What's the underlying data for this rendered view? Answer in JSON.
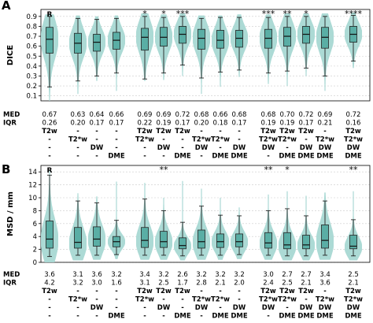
{
  "colors": {
    "violin": "#a8d8d3",
    "box": "#5aaea5",
    "line": "#222222",
    "grid": "#cccccc"
  },
  "table": {
    "row_labels": {
      "med": "MED",
      "iqr": "IQR"
    }
  },
  "chart_data": [
    {
      "panel_label": "A",
      "type": "violin",
      "ylabel": "DICE",
      "ylim": [
        0.05,
        0.97
      ],
      "yticks": [
        0.1,
        0.2,
        0.3,
        0.4,
        0.5,
        0.6,
        0.7,
        0.8,
        0.9
      ],
      "ytick_labels": [
        "0.1",
        "0.2",
        "0.3",
        "0.4",
        "0.5",
        "0.6",
        "0.7",
        "0.8",
        "0.9"
      ],
      "grid": true,
      "groups": [
        1,
        1,
        1,
        1,
        2,
        2,
        2,
        2,
        2,
        2,
        3,
        3,
        3,
        3,
        4
      ],
      "reference_marker": "R",
      "reference_index": 0,
      "significance": [
        "",
        "",
        "",
        "",
        "*",
        "*",
        "***",
        "",
        "",
        "",
        "***",
        "**",
        "*",
        "",
        "****"
      ],
      "med": [
        "0.67",
        "0.63",
        "0.64",
        "0.66",
        "0.69",
        "0.69",
        "0.72",
        "0.68",
        "0.66",
        "0.68",
        "0.68",
        "0.70",
        "0.72",
        "0.69",
        "0.72"
      ],
      "iqr": [
        "0.26",
        "0.20",
        "0.17",
        "0.17",
        "0.22",
        "0.19",
        "0.17",
        "0.20",
        "0.18",
        "0.17",
        "0.19",
        "0.19",
        "0.17",
        "0.21",
        "0.16"
      ],
      "sequence_rows": [
        [
          "T2w",
          "-",
          "-",
          "-",
          "T2w",
          "T2w",
          "T2w",
          "-",
          "-",
          "-",
          "T2w",
          "T2w",
          "T2w",
          "-",
          "T2w"
        ],
        [
          "-",
          "T2*w",
          "-",
          "-",
          "T2*w",
          "-",
          "-",
          "T2*w",
          "T2*w",
          "-",
          "T2*w",
          "T2*w",
          "-",
          "T2*w",
          "T2*w"
        ],
        [
          "-",
          "-",
          "DW",
          "-",
          "-",
          "DW",
          "-",
          "DW",
          "-",
          "DW",
          "DW",
          "-",
          "DW",
          "DW",
          "DW"
        ],
        [
          "-",
          "-",
          "-",
          "DME",
          "-",
          "-",
          "DME",
          "-",
          "DME",
          "DME",
          "-",
          "DME",
          "DME",
          "DME",
          "DME"
        ]
      ],
      "boxes": [
        {
          "median": 0.67,
          "q1": 0.53,
          "q3": 0.79,
          "whisker_low": 0.19,
          "whisker_high": 0.9,
          "kde_low": 0.05,
          "kde_high": 0.92
        },
        {
          "median": 0.63,
          "q1": 0.53,
          "q3": 0.73,
          "whisker_low": 0.25,
          "whisker_high": 0.88,
          "kde_low": 0.12,
          "kde_high": 0.91
        },
        {
          "median": 0.64,
          "q1": 0.55,
          "q3": 0.72,
          "whisker_low": 0.3,
          "whisker_high": 0.87,
          "kde_low": 0.25,
          "kde_high": 0.9
        },
        {
          "median": 0.66,
          "q1": 0.57,
          "q3": 0.74,
          "whisker_low": 0.33,
          "whisker_high": 0.88,
          "kde_low": 0.15,
          "kde_high": 0.91
        },
        {
          "median": 0.69,
          "q1": 0.56,
          "q3": 0.78,
          "whisker_low": 0.27,
          "whisker_high": 0.9,
          "kde_low": 0.25,
          "kde_high": 0.93
        },
        {
          "median": 0.69,
          "q1": 0.6,
          "q3": 0.79,
          "whisker_low": 0.33,
          "whisker_high": 0.89,
          "kde_low": 0.26,
          "kde_high": 0.92
        },
        {
          "median": 0.72,
          "q1": 0.63,
          "q3": 0.8,
          "whisker_low": 0.41,
          "whisker_high": 0.9,
          "kde_low": 0.3,
          "kde_high": 0.93
        },
        {
          "median": 0.68,
          "q1": 0.57,
          "q3": 0.77,
          "whisker_low": 0.28,
          "whisker_high": 0.88,
          "kde_low": 0.12,
          "kde_high": 0.91
        },
        {
          "median": 0.66,
          "q1": 0.58,
          "q3": 0.76,
          "whisker_low": 0.34,
          "whisker_high": 0.89,
          "kde_low": 0.19,
          "kde_high": 0.91
        },
        {
          "median": 0.68,
          "q1": 0.59,
          "q3": 0.76,
          "whisker_low": 0.36,
          "whisker_high": 0.89,
          "kde_low": 0.29,
          "kde_high": 0.92
        },
        {
          "median": 0.68,
          "q1": 0.58,
          "q3": 0.77,
          "whisker_low": 0.33,
          "whisker_high": 0.89,
          "kde_low": 0.22,
          "kde_high": 0.92
        },
        {
          "median": 0.7,
          "q1": 0.6,
          "q3": 0.79,
          "whisker_low": 0.35,
          "whisker_high": 0.9,
          "kde_low": 0.2,
          "kde_high": 0.93
        },
        {
          "median": 0.72,
          "q1": 0.63,
          "q3": 0.8,
          "whisker_low": 0.38,
          "whisker_high": 0.9,
          "kde_low": 0.3,
          "kde_high": 0.93
        },
        {
          "median": 0.69,
          "q1": 0.58,
          "q3": 0.79,
          "whisker_low": 0.3,
          "whisker_high": 0.9,
          "kde_low": 0.15,
          "kde_high": 0.93
        },
        {
          "median": 0.72,
          "q1": 0.64,
          "q3": 0.8,
          "whisker_low": 0.45,
          "whisker_high": 0.91,
          "kde_low": 0.38,
          "kde_high": 0.94
        }
      ]
    },
    {
      "panel_label": "B",
      "type": "violin",
      "ylabel": "MSD / mm",
      "ylim": [
        0,
        15
      ],
      "yticks": [
        0,
        2,
        4,
        6,
        8,
        10,
        12,
        14
      ],
      "ytick_labels": [
        "0",
        "2",
        "4",
        "6",
        "8",
        "10",
        "12",
        "14"
      ],
      "grid": true,
      "groups": [
        1,
        1,
        1,
        1,
        2,
        2,
        2,
        2,
        2,
        2,
        3,
        3,
        3,
        3,
        4
      ],
      "reference_marker": "R",
      "reference_index": 0,
      "significance": [
        "",
        "",
        "",
        "",
        "",
        "**",
        "",
        "",
        "",
        "",
        "**",
        "*",
        "",
        "",
        "**"
      ],
      "med": [
        "3.6",
        "3.1",
        "3.6",
        "3.2",
        "3.4",
        "3.2",
        "2.6",
        "3.2",
        "3.2",
        "3.2",
        "3.0",
        "2.7",
        "2.7",
        "3.4",
        "2.5"
      ],
      "iqr": [
        "4.2",
        "3.2",
        "3.0",
        "1.6",
        "3.1",
        "2.5",
        "1.7",
        "2.8",
        "2.1",
        "2.0",
        "2.4",
        "2.5",
        "2.1",
        "3.6",
        "2.1"
      ],
      "sequence_rows": [
        [
          "T2w",
          "-",
          "-",
          "-",
          "T2w",
          "T2w",
          "T2w",
          "-",
          "-",
          "-",
          "T2w",
          "T2w",
          "T2w",
          "-",
          "T2w"
        ],
        [
          "-",
          "T2*w",
          "-",
          "-",
          "T2*w",
          "-",
          "-",
          "T2*w",
          "T2*w",
          "-",
          "T2*w",
          "T2*w",
          "-",
          "T2*w",
          "T2*w"
        ],
        [
          "-",
          "-",
          "DW",
          "-",
          "-",
          "DW",
          "-",
          "DW",
          "-",
          "DW",
          "DW",
          "-",
          "DW",
          "DW",
          "DW"
        ],
        [
          "-",
          "-",
          "-",
          "DME",
          "-",
          "-",
          "DME",
          "-",
          "DME",
          "DME",
          "-",
          "DME",
          "DME",
          "DME",
          "DME"
        ]
      ],
      "boxes": [
        {
          "median": 3.6,
          "q1": 2.2,
          "q3": 6.4,
          "whisker_low": 0.9,
          "whisker_high": 13.5,
          "kde_low": 0.0,
          "kde_high": 14.2
        },
        {
          "median": 3.1,
          "q1": 2.2,
          "q3": 5.4,
          "whisker_low": 1.1,
          "whisker_high": 9.5,
          "kde_low": 0.3,
          "kde_high": 10.7
        },
        {
          "median": 3.6,
          "q1": 2.5,
          "q3": 5.5,
          "whisker_low": 1.1,
          "whisker_high": 9.2,
          "kde_low": 0.4,
          "kde_high": 10.2
        },
        {
          "median": 3.2,
          "q1": 2.4,
          "q3": 4.0,
          "whisker_low": 1.2,
          "whisker_high": 6.5,
          "kde_low": 0.5,
          "kde_high": 12.5
        },
        {
          "median": 3.4,
          "q1": 2.3,
          "q3": 5.4,
          "whisker_low": 1.1,
          "whisker_high": 9.8,
          "kde_low": 0.4,
          "kde_high": 12.3
        },
        {
          "median": 3.2,
          "q1": 2.3,
          "q3": 4.8,
          "whisker_low": 1.1,
          "whisker_high": 8.0,
          "kde_low": 0.4,
          "kde_high": 10.0
        },
        {
          "median": 2.6,
          "q1": 2.1,
          "q3": 3.8,
          "whisker_low": 1.0,
          "whisker_high": 6.2,
          "kde_low": 0.3,
          "kde_high": 12.6
        },
        {
          "median": 3.2,
          "q1": 2.2,
          "q3": 5.0,
          "whisker_low": 1.1,
          "whisker_high": 8.7,
          "kde_low": 0.4,
          "kde_high": 11.4
        },
        {
          "median": 3.2,
          "q1": 2.3,
          "q3": 4.4,
          "whisker_low": 1.1,
          "whisker_high": 7.3,
          "kde_low": 0.4,
          "kde_high": 10.0
        },
        {
          "median": 3.2,
          "q1": 2.4,
          "q3": 4.4,
          "whisker_low": 1.2,
          "whisker_high": 7.2,
          "kde_low": 0.5,
          "kde_high": 8.5
        },
        {
          "median": 3.0,
          "q1": 2.2,
          "q3": 4.6,
          "whisker_low": 1.1,
          "whisker_high": 8.0,
          "kde_low": 0.4,
          "kde_high": 10.5
        },
        {
          "median": 2.7,
          "q1": 2.1,
          "q3": 4.6,
          "whisker_low": 1.0,
          "whisker_high": 8.3,
          "kde_low": 0.3,
          "kde_high": 11.0
        },
        {
          "median": 2.7,
          "q1": 2.1,
          "q3": 4.2,
          "whisker_low": 1.0,
          "whisker_high": 7.2,
          "kde_low": 0.3,
          "kde_high": 10.3
        },
        {
          "median": 3.4,
          "q1": 2.2,
          "q3": 5.8,
          "whisker_low": 1.1,
          "whisker_high": 9.5,
          "kde_low": 0.4,
          "kde_high": 10.8
        },
        {
          "median": 2.5,
          "q1": 2.1,
          "q3": 4.2,
          "whisker_low": 1.0,
          "whisker_high": 6.6,
          "kde_low": 0.3,
          "kde_high": 11.0
        }
      ]
    }
  ]
}
